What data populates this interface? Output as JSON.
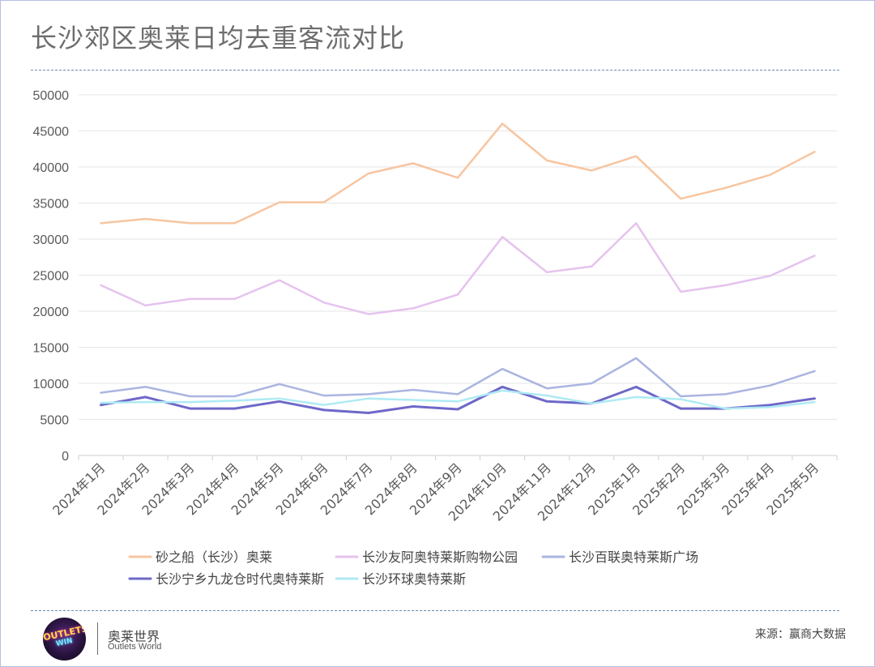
{
  "title": "长沙郊区奥莱日均去重客流对比",
  "footer": {
    "logo_text": [
      "OUTLETS",
      "WIN"
    ],
    "brand_cn": "奥莱世界",
    "brand_en": "Outlets World",
    "source": "来源：赢商大数据"
  },
  "chart_data": {
    "type": "line",
    "title": "长沙郊区奥莱日均去重客流对比",
    "xlabel": "",
    "ylabel": "",
    "ylim": [
      0,
      50000
    ],
    "yticks": [
      0,
      5000,
      10000,
      15000,
      20000,
      25000,
      30000,
      35000,
      40000,
      45000,
      50000
    ],
    "grid": true,
    "legend_position": "bottom",
    "categories": [
      "2024年1月",
      "2024年2月",
      "2024年3月",
      "2024年4月",
      "2024年5月",
      "2024年6月",
      "2024年7月",
      "2024年8月",
      "2024年9月",
      "2024年10月",
      "2024年11月",
      "2024年12月",
      "2025年1月",
      "2025年2月",
      "2025年3月",
      "2025年4月",
      "2025年5月"
    ],
    "series": [
      {
        "name": "砂之船（长沙）奥莱",
        "color": "#f7c5a0",
        "values": [
          32200,
          32800,
          32200,
          32200,
          35100,
          35100,
          39100,
          40500,
          38500,
          46000,
          40900,
          39500,
          41500,
          35600,
          37100,
          38900,
          42100
        ]
      },
      {
        "name": "长沙友阿奥特莱斯购物公园",
        "color": "#e5c3ee",
        "values": [
          23600,
          20800,
          21700,
          21700,
          24300,
          21200,
          19600,
          20400,
          22300,
          30300,
          25400,
          26200,
          32200,
          22700,
          23600,
          24900,
          27700
        ]
      },
      {
        "name": "长沙百联奥特莱斯广场",
        "color": "#aab5e0",
        "values": [
          8700,
          9500,
          8200,
          8200,
          9900,
          8300,
          8500,
          9100,
          8500,
          12000,
          9300,
          10000,
          13500,
          8200,
          8500,
          9700,
          11700
        ]
      },
      {
        "name": "长沙宁乡九龙仓时代奥特莱斯",
        "color": "#6e68c8",
        "values": [
          7000,
          8100,
          6500,
          6500,
          7500,
          6300,
          5900,
          6800,
          6400,
          9500,
          7500,
          7200,
          9500,
          6500,
          6500,
          7000,
          7900
        ]
      },
      {
        "name": "长沙环球奥特莱斯",
        "color": "#aeeaf4",
        "values": [
          7300,
          7400,
          7400,
          7600,
          7900,
          7000,
          7900,
          7700,
          7500,
          9000,
          8300,
          7200,
          8100,
          7800,
          6500,
          6700,
          7400
        ]
      }
    ]
  }
}
